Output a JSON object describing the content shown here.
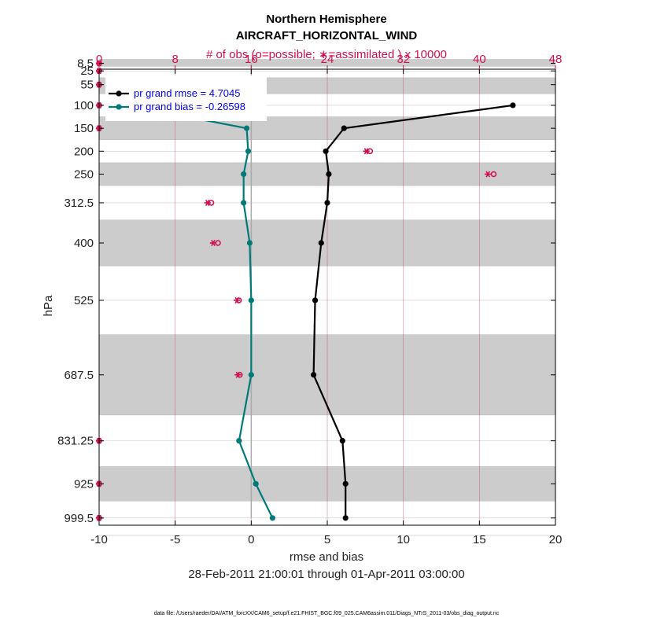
{
  "chart_data": {
    "type": "line",
    "title_line1": "Northern Hemisphere",
    "title_line2": "AIRCRAFT_HORIZONTAL_WIND",
    "top_axis_label": "# of obs (o=possible; ∗=assimilated ) x 10000",
    "xlabel": "rmse and bias",
    "ylabel": "hPa",
    "date_range": "28-Feb-2011 21:00:01 through 01-Apr-2011 03:00:00",
    "footer": "data file: /Users/raeder/DAI/ATM_forcXX/CAM6_setup/f.e21.FHIST_BGC.f09_025.CAM6assim.011/Diags_NTrS_2011-03/obs_diag_output.nc",
    "xlim": [
      -10,
      20
    ],
    "xticks": [
      -10,
      -5,
      0,
      5,
      10,
      15,
      20
    ],
    "xtick_labels": [
      "-10",
      "-5",
      "0",
      "5",
      "10",
      "15",
      "20"
    ],
    "top_xlim": [
      0,
      48
    ],
    "top_xticks": [
      0,
      8,
      16,
      24,
      32,
      40,
      48
    ],
    "top_xtick_labels": [
      "0",
      "8",
      "16",
      "24",
      "32",
      "40",
      "48"
    ],
    "levels": [
      8.5,
      25,
      55,
      100,
      150,
      200,
      250,
      312.5,
      400,
      525,
      687.5,
      831.25,
      925,
      999.5
    ],
    "level_labels": [
      "8.5",
      "25",
      "55",
      "100",
      "150",
      "200",
      "250",
      "312.5",
      "400",
      "525",
      "687.5",
      "831.25",
      "925",
      "999.5"
    ],
    "level_bounds": [
      0,
      15,
      40,
      75,
      125,
      175,
      225,
      275,
      350,
      450,
      600,
      775,
      887.5,
      962.5,
      1037.5
    ],
    "shaded_bands": [
      [
        0,
        15
      ],
      [
        40,
        75
      ],
      [
        125,
        175
      ],
      [
        225,
        275
      ],
      [
        350,
        450
      ],
      [
        600,
        775
      ],
      [
        887.5,
        962.5
      ]
    ],
    "series": [
      {
        "name": "pr grand rmse",
        "legend": "pr grand rmse = 4.7045",
        "color": "#000000",
        "points": [
          [
            17.2,
            100
          ],
          [
            6.1,
            150
          ],
          [
            4.9,
            200
          ],
          [
            5.1,
            250
          ],
          [
            5.0,
            312.5
          ],
          [
            4.6,
            400
          ],
          [
            4.2,
            525
          ],
          [
            4.1,
            687.5
          ],
          [
            6.0,
            831.25
          ],
          [
            6.2,
            925
          ],
          [
            6.2,
            999.5
          ]
        ]
      },
      {
        "name": "pr grand bias",
        "legend": "pr grand bias = -0.26598",
        "color": "#007a78",
        "points": [
          [
            -8.1,
            100
          ],
          [
            -0.3,
            150
          ],
          [
            -0.2,
            200
          ],
          [
            -0.5,
            250
          ],
          [
            -0.5,
            312.5
          ],
          [
            -0.1,
            400
          ],
          [
            0.0,
            525
          ],
          [
            0.0,
            687.5
          ],
          [
            -0.8,
            831.25
          ],
          [
            0.3,
            925
          ],
          [
            1.4,
            999.5
          ]
        ]
      }
    ],
    "obs_possible": [
      [
        0,
        8.5
      ],
      [
        0,
        25
      ],
      [
        0,
        55
      ],
      [
        0,
        100
      ],
      [
        0,
        150
      ],
      [
        28.5,
        200
      ],
      [
        41.5,
        250
      ],
      [
        11.8,
        312.5
      ],
      [
        12.5,
        400
      ],
      [
        14.7,
        525
      ],
      [
        14.8,
        687.5
      ],
      [
        0,
        831.25
      ],
      [
        0,
        925
      ],
      [
        0,
        999.5
      ]
    ],
    "obs_assimilated": [
      [
        0,
        8.5
      ],
      [
        0,
        25
      ],
      [
        0,
        55
      ],
      [
        0,
        100
      ],
      [
        0,
        150
      ],
      [
        28.1,
        200
      ],
      [
        40.9,
        250
      ],
      [
        11.4,
        312.5
      ],
      [
        12.0,
        400
      ],
      [
        14.5,
        525
      ],
      [
        14.6,
        687.5
      ],
      [
        0,
        831.25
      ],
      [
        0,
        925
      ],
      [
        0,
        999.5
      ]
    ],
    "obs_color": "#d0104c"
  }
}
